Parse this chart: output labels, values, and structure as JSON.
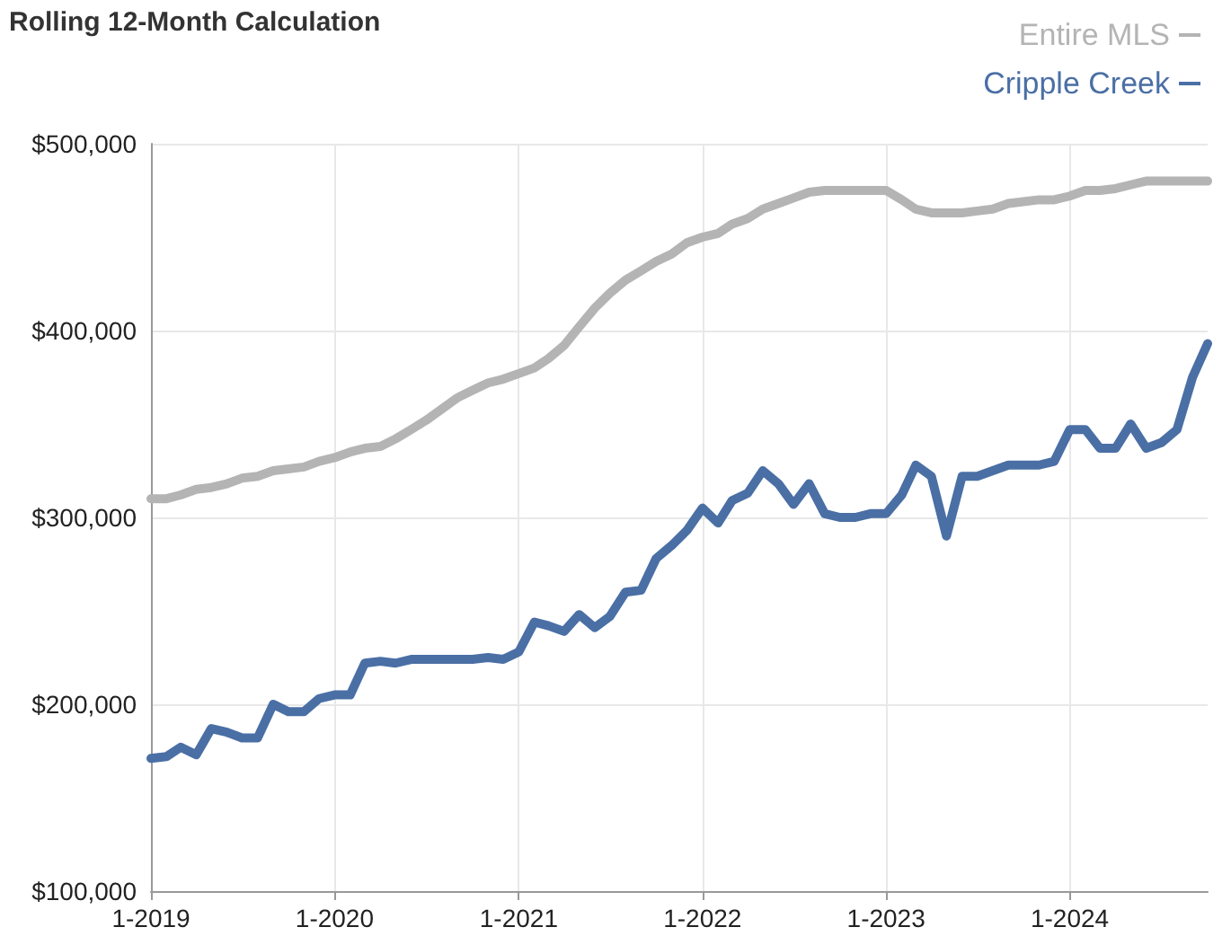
{
  "chart_data": {
    "type": "line",
    "title": "Rolling 12-Month Calculation",
    "x": [
      "2019-01",
      "2019-02",
      "2019-03",
      "2019-04",
      "2019-05",
      "2019-06",
      "2019-07",
      "2019-08",
      "2019-09",
      "2019-10",
      "2019-11",
      "2019-12",
      "2020-01",
      "2020-02",
      "2020-03",
      "2020-04",
      "2020-05",
      "2020-06",
      "2020-07",
      "2020-08",
      "2020-09",
      "2020-10",
      "2020-11",
      "2020-12",
      "2021-01",
      "2021-02",
      "2021-03",
      "2021-04",
      "2021-05",
      "2021-06",
      "2021-07",
      "2021-08",
      "2021-09",
      "2021-10",
      "2021-11",
      "2021-12",
      "2022-01",
      "2022-02",
      "2022-03",
      "2022-04",
      "2022-05",
      "2022-06",
      "2022-07",
      "2022-08",
      "2022-09",
      "2022-10",
      "2022-11",
      "2022-12",
      "2023-01",
      "2023-02",
      "2023-03",
      "2023-04",
      "2023-05",
      "2023-06",
      "2023-07",
      "2023-08",
      "2023-09",
      "2023-10",
      "2023-11",
      "2023-12",
      "2024-01",
      "2024-02",
      "2024-03",
      "2024-04",
      "2024-05",
      "2024-06",
      "2024-07",
      "2024-08",
      "2024-09",
      "2024-10"
    ],
    "series": [
      {
        "name": "Entire MLS",
        "color": "#b4b4b4",
        "values": [
          310000,
          310000,
          312000,
          315000,
          316000,
          318000,
          321000,
          322000,
          325000,
          326000,
          327000,
          330000,
          332000,
          335000,
          337000,
          338000,
          342000,
          347000,
          352000,
          358000,
          364000,
          368000,
          372000,
          374000,
          377000,
          380000,
          385000,
          392000,
          402000,
          412000,
          420000,
          427000,
          432000,
          437000,
          441000,
          447000,
          450000,
          452000,
          457000,
          460000,
          465000,
          468000,
          471000,
          474000,
          475000,
          475000,
          475000,
          475000,
          475000,
          470000,
          465000,
          463000,
          463000,
          463000,
          464000,
          465000,
          468000,
          469000,
          470000,
          470000,
          472000,
          475000,
          475000,
          476000,
          478000,
          480000,
          480000,
          480000,
          480000,
          480000
        ]
      },
      {
        "name": "Cripple Creek",
        "color": "#4a6fa5",
        "values": [
          171000,
          172000,
          177000,
          173000,
          187000,
          185000,
          182000,
          182000,
          200000,
          196000,
          196000,
          203000,
          205000,
          205000,
          222000,
          223000,
          222000,
          224000,
          224000,
          224000,
          224000,
          224000,
          225000,
          224000,
          228000,
          244000,
          242000,
          239000,
          248000,
          241000,
          247000,
          260000,
          261000,
          278000,
          285000,
          293000,
          305000,
          297000,
          309000,
          313000,
          325000,
          318000,
          307000,
          318000,
          302000,
          300000,
          300000,
          302000,
          302000,
          312000,
          328000,
          322000,
          290000,
          322000,
          322000,
          325000,
          328000,
          328000,
          328000,
          330000,
          347000,
          347000,
          337000,
          337000,
          350000,
          337000,
          340000,
          347000,
          375000,
          393000
        ]
      }
    ],
    "xlim": [
      "2019-01",
      "2024-10"
    ],
    "xticks": [
      {
        "value": "2019-01",
        "label": "1-2019"
      },
      {
        "value": "2020-01",
        "label": "1-2020"
      },
      {
        "value": "2021-01",
        "label": "1-2021"
      },
      {
        "value": "2022-01",
        "label": "1-2022"
      },
      {
        "value": "2023-01",
        "label": "1-2023"
      },
      {
        "value": "2024-01",
        "label": "1-2024"
      }
    ],
    "ylim": [
      100000,
      500000
    ],
    "yticks": [
      {
        "value": 100000,
        "label": "$100,000"
      },
      {
        "value": 200000,
        "label": "$200,000"
      },
      {
        "value": 300000,
        "label": "$300,000"
      },
      {
        "value": 400000,
        "label": "$400,000"
      },
      {
        "value": 500000,
        "label": "$500,000"
      }
    ],
    "grid": true,
    "legend": "top right",
    "marker": "none",
    "line_style": "solid"
  }
}
